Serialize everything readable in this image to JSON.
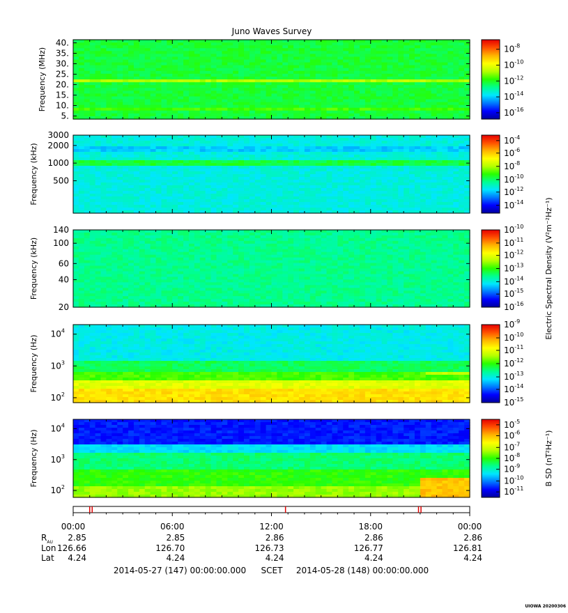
{
  "title": "Juno Waves Survey",
  "colors": {
    "colorbar_stops": [
      "#00009e",
      "#0000ff",
      "#0078ff",
      "#00e6ff",
      "#00ff90",
      "#28ff00",
      "#b4ff00",
      "#ffff00",
      "#ffb400",
      "#ff5000",
      "#e60000"
    ],
    "ephem_marker": "#e00000"
  },
  "chart_data": [
    {
      "type": "heatmap",
      "name": "hfr-high",
      "ylabel": "Frequency (MHz)",
      "yscale": "linear",
      "ylim": [
        3.5,
        41.5
      ],
      "yticks": [
        {
          "value": 40,
          "label": "40."
        },
        {
          "value": 35,
          "label": "35."
        },
        {
          "value": 30,
          "label": "30."
        },
        {
          "value": 25,
          "label": "25."
        },
        {
          "value": 20,
          "label": "20."
        },
        {
          "value": 15,
          "label": "15."
        },
        {
          "value": 10,
          "label": "10."
        },
        {
          "value": 5,
          "label": "5."
        }
      ],
      "colorbar": {
        "label": "",
        "ticks": [
          {
            "exp": -8,
            "frac": 0.88
          },
          {
            "exp": -10,
            "frac": 0.68
          },
          {
            "exp": -12,
            "frac": 0.48
          },
          {
            "exp": -14,
            "frac": 0.28
          },
          {
            "exp": -16,
            "frac": 0.08
          }
        ]
      },
      "mean_level": 0.46,
      "bands": [
        {
          "from": 20.5,
          "to": 22.5,
          "level": 0.6
        },
        {
          "from": 7.8,
          "to": 9.0,
          "level": 0.52
        }
      ],
      "step_changes": []
    },
    {
      "type": "heatmap",
      "name": "hfr-low",
      "ylabel": "Frequency (kHz)",
      "yscale": "log",
      "ylim": [
        140,
        3000
      ],
      "yticks": [
        {
          "value": 3000,
          "label": "3000"
        },
        {
          "value": 2000,
          "label": "2000"
        },
        {
          "value": 1000,
          "label": "1000"
        },
        {
          "value": 500,
          "label": "500"
        }
      ],
      "colorbar": {
        "label": "",
        "ticks": [
          {
            "exp": -4,
            "frac": 0.93
          },
          {
            "exp": -6,
            "frac": 0.77
          },
          {
            "exp": -8,
            "frac": 0.6
          },
          {
            "exp": -10,
            "frac": 0.43
          },
          {
            "exp": -12,
            "frac": 0.27
          },
          {
            "exp": -14,
            "frac": 0.1
          }
        ]
      },
      "mean_level": 0.33,
      "bands": [
        {
          "from": 950,
          "to": 1150,
          "level": 0.46
        },
        {
          "from": 1600,
          "to": 2000,
          "level": 0.28
        }
      ],
      "step_changes": []
    },
    {
      "type": "heatmap",
      "name": "lfr-high",
      "ylabel": "Frequency (kHz)",
      "yscale": "log",
      "ylim": [
        20,
        140
      ],
      "yticks": [
        {
          "value": 140,
          "label": "140"
        },
        {
          "value": 100,
          "label": "100"
        },
        {
          "value": 60,
          "label": "60"
        },
        {
          "value": 40,
          "label": "40"
        },
        {
          "value": 20,
          "label": "20"
        }
      ],
      "colorbar": {
        "label": "Electric Spectral Density (V²m⁻²Hz⁻¹)",
        "ticks": [
          {
            "exp": -10,
            "frac": 1.0
          },
          {
            "exp": -11,
            "frac": 0.83
          },
          {
            "exp": -12,
            "frac": 0.67
          },
          {
            "exp": -13,
            "frac": 0.5
          },
          {
            "exp": -14,
            "frac": 0.33
          },
          {
            "exp": -15,
            "frac": 0.17
          },
          {
            "exp": -16,
            "frac": 0.0
          }
        ]
      },
      "mean_level": 0.4,
      "bands": [],
      "step_changes": []
    },
    {
      "type": "heatmap",
      "name": "lfr-low-e",
      "ylabel": "Frequency (Hz)",
      "yscale": "log",
      "ylim": [
        70,
        20000
      ],
      "yticks": [
        {
          "value": 10000,
          "label": "10",
          "exp": "4"
        },
        {
          "value": 1000,
          "label": "10",
          "exp": "3"
        },
        {
          "value": 100,
          "label": "10",
          "exp": "2"
        }
      ],
      "colorbar": {
        "label": "",
        "ticks": [
          {
            "exp": -9,
            "frac": 1.0
          },
          {
            "exp": -10,
            "frac": 0.83
          },
          {
            "exp": -11,
            "frac": 0.67
          },
          {
            "exp": -12,
            "frac": 0.5
          },
          {
            "exp": -13,
            "frac": 0.33
          },
          {
            "exp": -14,
            "frac": 0.17
          },
          {
            "exp": -15,
            "frac": 0.0
          }
        ]
      },
      "mean_level": 0.4,
      "bands": [
        {
          "from": 70,
          "to": 180,
          "level": 0.74
        },
        {
          "from": 180,
          "to": 350,
          "level": 0.66
        },
        {
          "from": 350,
          "to": 700,
          "level": 0.52
        },
        {
          "from": 700,
          "to": 1500,
          "level": 0.44
        },
        {
          "from": 1500,
          "to": 20000,
          "level": 0.32
        }
      ],
      "step_changes": [
        {
          "after_hour": 21.5,
          "from": 520,
          "to": 600,
          "level": 0.62
        }
      ]
    },
    {
      "type": "heatmap",
      "name": "lfr-low-b",
      "ylabel": "Frequency (Hz)",
      "yscale": "log",
      "ylim": [
        60,
        20000
      ],
      "yticks": [
        {
          "value": 10000,
          "label": "10",
          "exp": "4"
        },
        {
          "value": 1000,
          "label": "10",
          "exp": "3"
        },
        {
          "value": 100,
          "label": "10",
          "exp": "2"
        }
      ],
      "colorbar": {
        "label": "B SD (nT²Hz⁻¹)",
        "ticks": [
          {
            "exp": -5,
            "frac": 0.93
          },
          {
            "exp": -6,
            "frac": 0.79
          },
          {
            "exp": -7,
            "frac": 0.64
          },
          {
            "exp": -8,
            "frac": 0.5
          },
          {
            "exp": -9,
            "frac": 0.36
          },
          {
            "exp": -10,
            "frac": 0.21
          },
          {
            "exp": -11,
            "frac": 0.07
          }
        ]
      },
      "mean_level": 0.4,
      "bands": [
        {
          "from": 60,
          "to": 150,
          "level": 0.58
        },
        {
          "from": 150,
          "to": 500,
          "level": 0.5
        },
        {
          "from": 500,
          "to": 1500,
          "level": 0.42
        },
        {
          "from": 1500,
          "to": 3000,
          "level": 0.3
        },
        {
          "from": 3000,
          "to": 20000,
          "level": 0.12
        }
      ],
      "step_changes": [
        {
          "after_hour": 20.9,
          "from": 60,
          "to": 250,
          "level": 0.78
        }
      ]
    }
  ],
  "timeline": {
    "xlim_hours": [
      0,
      24
    ],
    "marker_hours": [
      1.0,
      1.15,
      12.85,
      20.9,
      21.05
    ],
    "major_hours": [
      0,
      6,
      12,
      18,
      24
    ],
    "time_labels": [
      "00:00",
      "06:00",
      "12:00",
      "18:00",
      "00:00"
    ]
  },
  "ephemeris": {
    "rows": [
      {
        "label": "R",
        "sub": "AU",
        "values": [
          "2.85",
          "2.85",
          "2.86",
          "2.86",
          "2.86"
        ]
      },
      {
        "label": "Lon",
        "sub": "",
        "values": [
          "126.66",
          "126.70",
          "126.73",
          "126.77",
          "126.81"
        ]
      },
      {
        "label": "Lat",
        "sub": "",
        "values": [
          "4.24",
          "4.24",
          "4.24",
          "4.24",
          "4.24"
        ]
      }
    ]
  },
  "footer": {
    "start": "2014-05-27 (147) 00:00:00.000",
    "scet": "SCET",
    "end": "2014-05-28 (148) 00:00:00.000"
  },
  "credit": "UIOWA 20200306"
}
